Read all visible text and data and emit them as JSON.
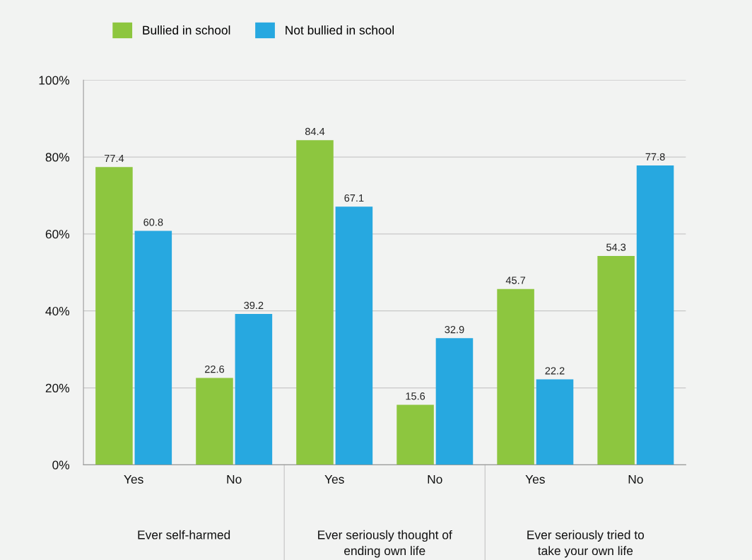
{
  "chart_data": {
    "type": "bar",
    "categories": [
      "Yes",
      "No",
      "Yes",
      "No",
      "Yes",
      "No"
    ],
    "series": [
      {
        "name": "Bullied in school",
        "color": "#8dc63f",
        "values": [
          77.4,
          22.6,
          84.4,
          15.6,
          45.7,
          54.3
        ]
      },
      {
        "name": "Not bullied in school",
        "color": "#27a8e0",
        "values": [
          60.8,
          39.2,
          67.1,
          32.9,
          22.2,
          77.8
        ]
      }
    ],
    "ylim": [
      0,
      100
    ],
    "yticks": [
      {
        "value": 0,
        "label": "0%"
      },
      {
        "value": 20,
        "label": "20%"
      },
      {
        "value": 40,
        "label": "40%"
      },
      {
        "value": 60,
        "label": "60%"
      },
      {
        "value": 80,
        "label": "80%"
      },
      {
        "value": 100,
        "label": "100%"
      }
    ],
    "grid": "y",
    "legend": "top left",
    "data_labels": true,
    "annotations": [
      "Ever self-harmed",
      "Ever seriously thought of\nending own life",
      "Ever seriously tried to\ntake your own life"
    ]
  }
}
